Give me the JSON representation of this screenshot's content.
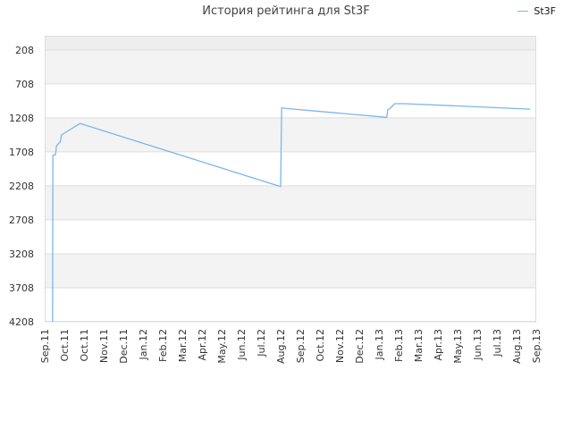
{
  "chart_data": {
    "type": "line",
    "title": "История рейтинга для St3F",
    "xlabel": "",
    "ylabel": "",
    "y_reversed": true,
    "ylim": [
      4208,
      0
    ],
    "y_ticks": [
      208,
      708,
      1208,
      1708,
      2208,
      2708,
      3208,
      3708,
      4208
    ],
    "x_ticks": [
      "Sep.11",
      "Oct.11",
      "Oct.11",
      "Nov.11",
      "Dec.11",
      "Jan.12",
      "Feb.12",
      "Mar.12",
      "Apr.12",
      "May.12",
      "Jun.12",
      "Jul.12",
      "Aug.12",
      "Sep.12",
      "Oct.12",
      "Nov.12",
      "Dec.12",
      "Jan.13",
      "Feb.13",
      "Mar.13",
      "Apr.13",
      "May.13",
      "Jun.13",
      "Jul.13",
      "Aug.13",
      "Sep.13"
    ],
    "grid": true,
    "legend_position": "top-right",
    "series": [
      {
        "name": "St3F",
        "color": "#7cb5ec",
        "points": [
          {
            "x": 0.4,
            "y": 4208
          },
          {
            "x": 0.42,
            "y": 1760
          },
          {
            "x": 0.55,
            "y": 1750
          },
          {
            "x": 0.6,
            "y": 1620
          },
          {
            "x": 0.8,
            "y": 1560
          },
          {
            "x": 0.85,
            "y": 1460
          },
          {
            "x": 1.8,
            "y": 1290
          },
          {
            "x": 12.0,
            "y": 2220
          },
          {
            "x": 12.05,
            "y": 1060
          },
          {
            "x": 12.3,
            "y": 1070
          },
          {
            "x": 17.4,
            "y": 1200
          },
          {
            "x": 17.45,
            "y": 1090
          },
          {
            "x": 17.6,
            "y": 1060
          },
          {
            "x": 17.8,
            "y": 1000
          },
          {
            "x": 18.3,
            "y": 1000
          },
          {
            "x": 24.7,
            "y": 1080
          }
        ]
      }
    ]
  }
}
